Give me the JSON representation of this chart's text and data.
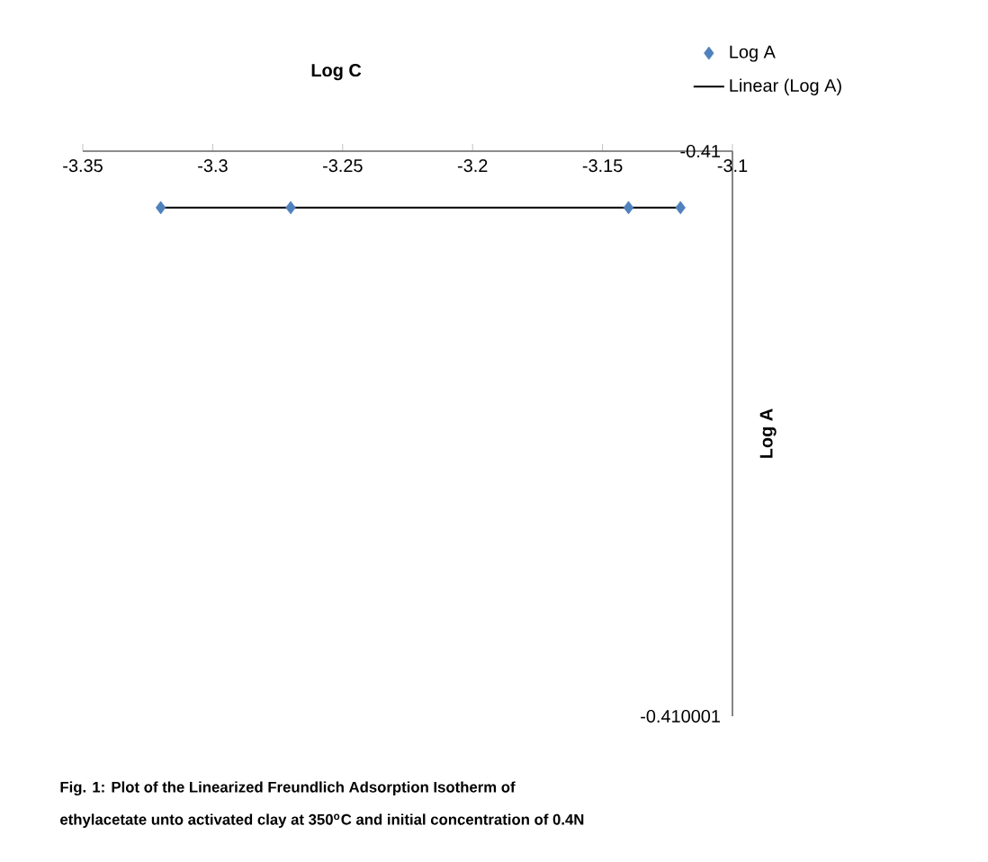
{
  "chart_data": {
    "type": "scatter",
    "xlabel": "Log C",
    "ylabel": "Log A",
    "xlim": [
      -3.35,
      -3.1
    ],
    "xticks": [
      -3.35,
      -3.3,
      -3.25,
      -3.2,
      -3.15,
      -3.1
    ],
    "ylim": [
      -0.410001,
      -0.41
    ],
    "yticks": [
      -0.41,
      -0.410001
    ],
    "legend": "top right",
    "series": [
      {
        "name": "Log A",
        "marker": "diamond",
        "color": "#4f81bd",
        "x": [
          -3.32,
          -3.27,
          -3.14,
          -3.12
        ],
        "values": [
          -0.4100001,
          -0.4100001,
          -0.4100001,
          -0.4100001
        ]
      },
      {
        "name": "Linear (Log A)",
        "type": "line",
        "color": "#000000",
        "x": [
          -3.32,
          -3.12
        ],
        "values": [
          -0.4100001,
          -0.4100001
        ]
      }
    ],
    "annotations": [
      "Fig. 1: Plot of the Linearized Freundlich Adsorption  Isotherm  of",
      "ethylacetate unto activated clay   at 350$^{o}$C and initial concentration of  0.4N"
    ]
  }
}
